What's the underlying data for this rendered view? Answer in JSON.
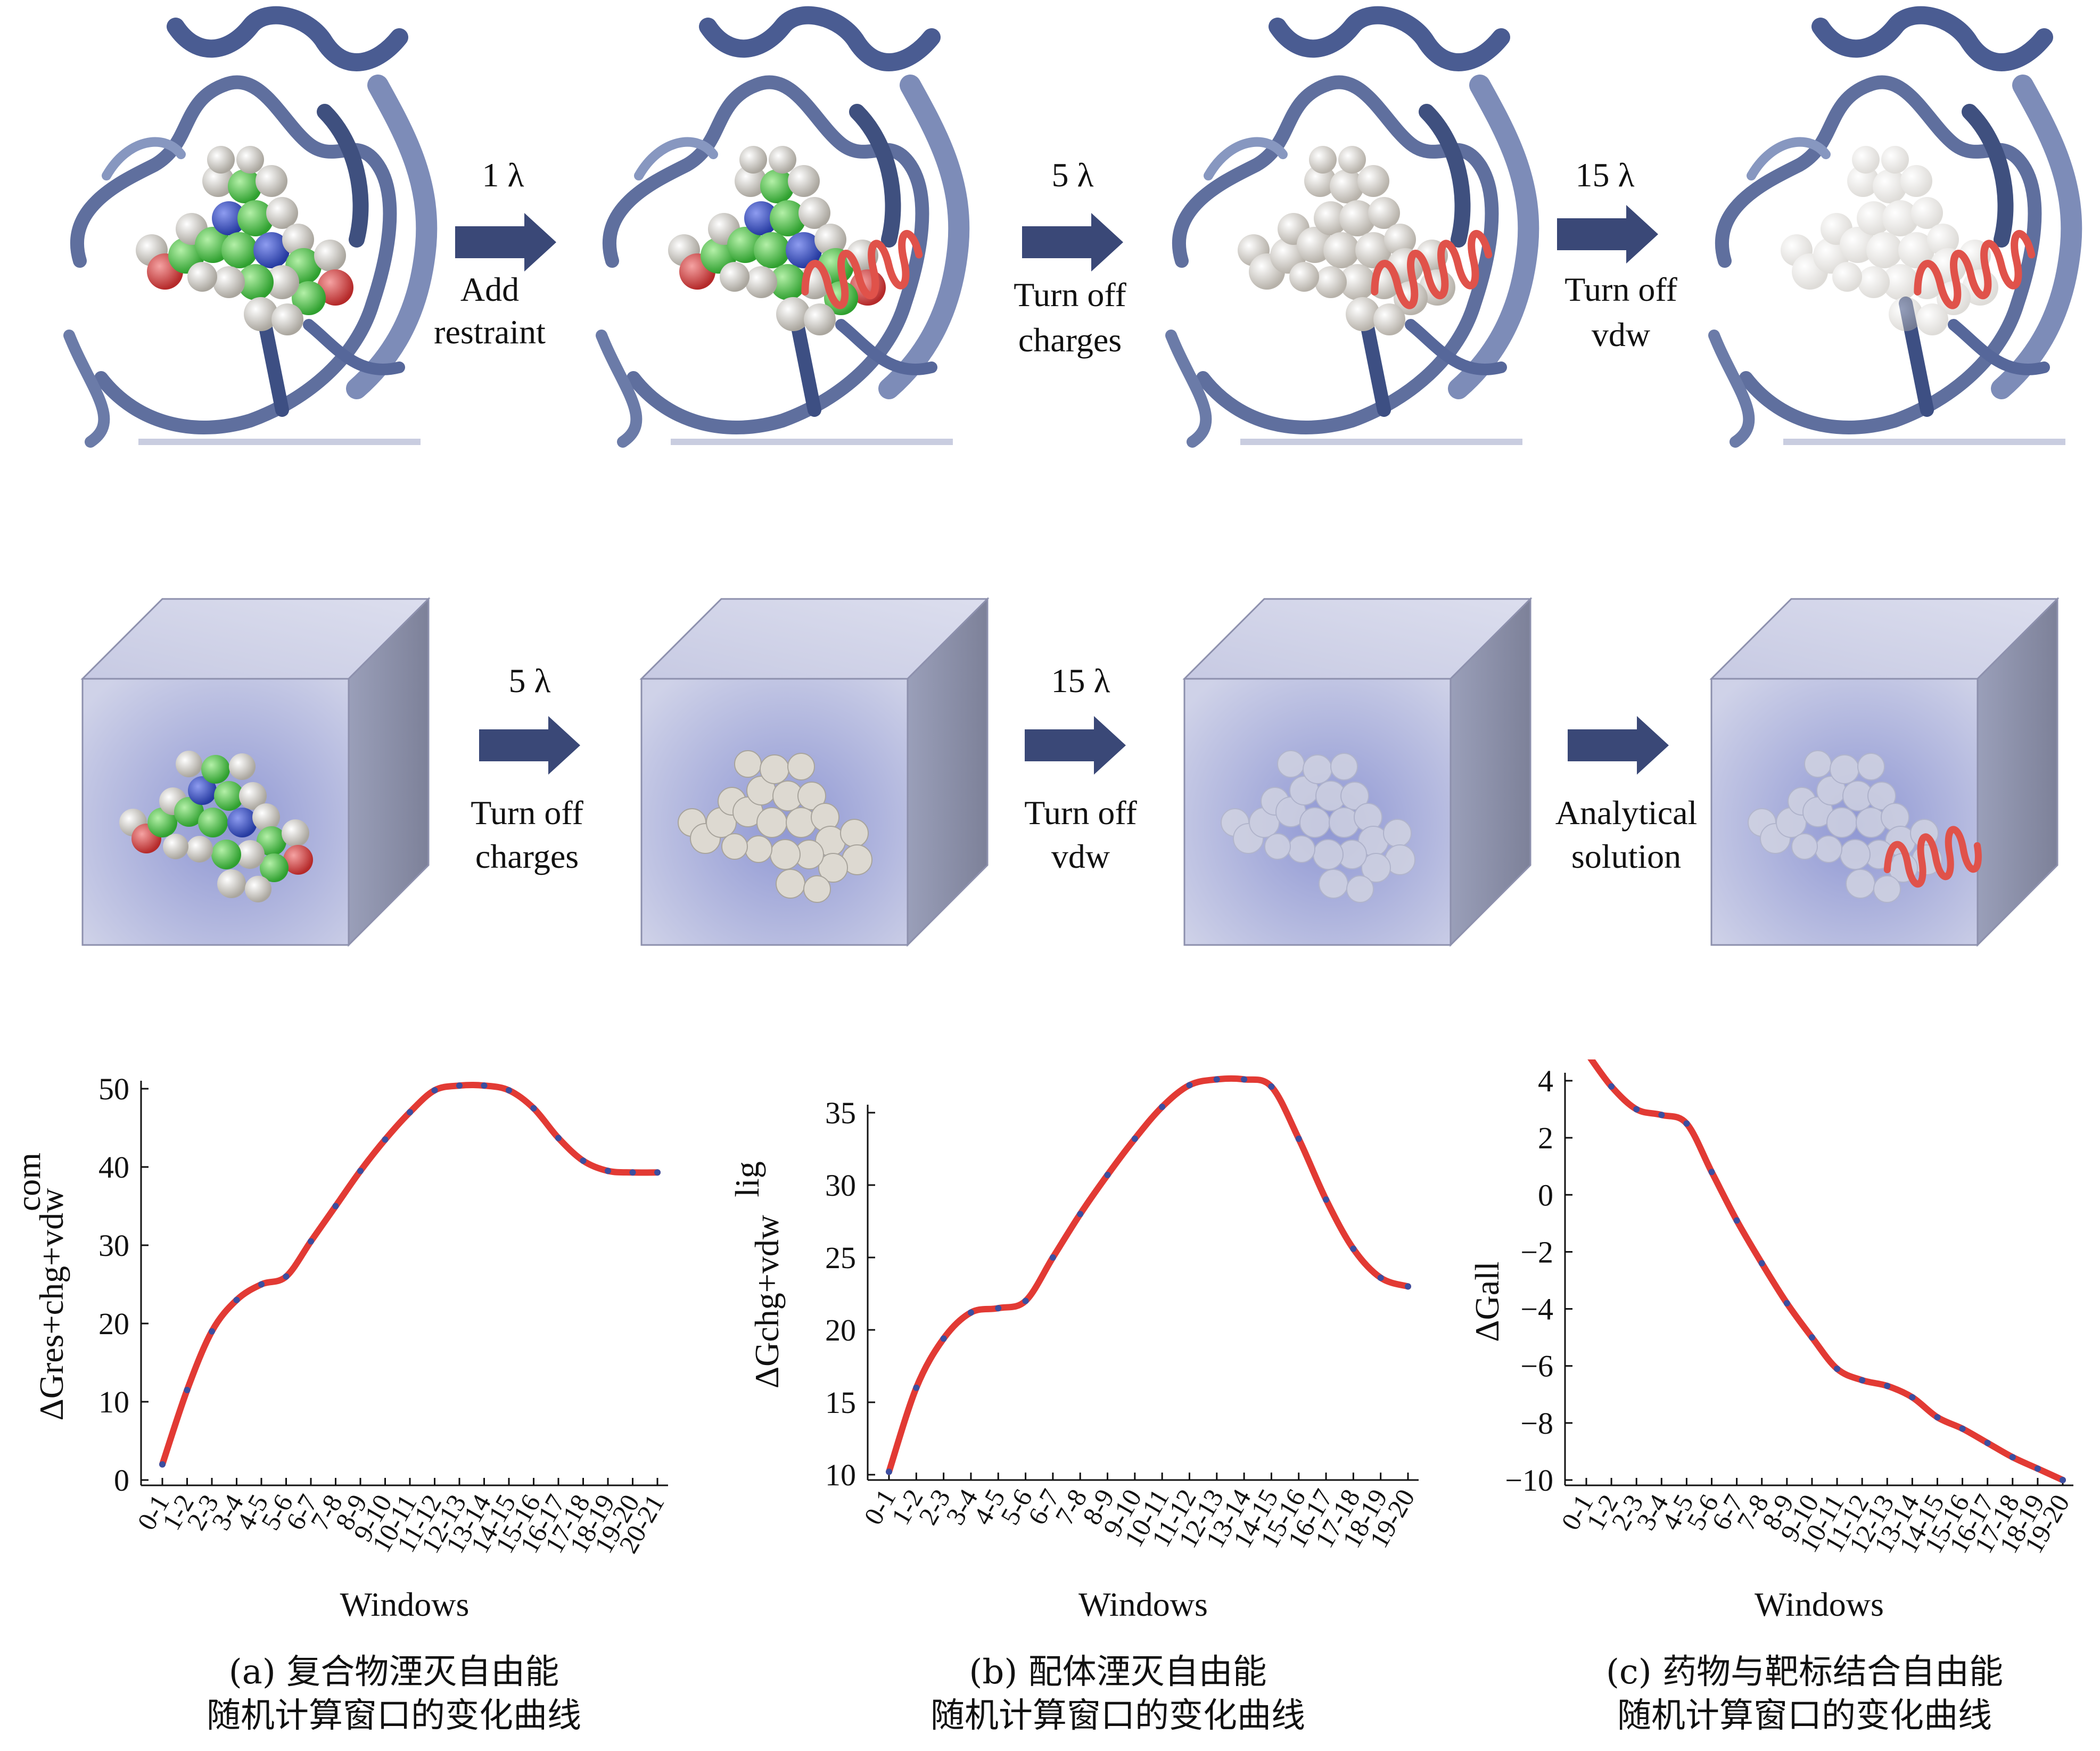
{
  "colors": {
    "arrow": "#3a4877",
    "protein": "#5f6f9e",
    "carbon": "#3fbf3f",
    "nitrogen": "#3a49b5",
    "oxygen": "#cf3f3f",
    "hydrogen": "#dedad2",
    "restraint": "#e0524a",
    "curve": "#e23a34",
    "points": "#3b4ea0",
    "box_face": "#b9bedf"
  },
  "row1": {
    "steps": [
      {
        "lambda": "1 λ",
        "text1": "Add",
        "text2": "restraint"
      },
      {
        "lambda": "5 λ",
        "text1": "Turn off",
        "text2": "charges"
      },
      {
        "lambda": "15 λ",
        "text1": "Turn off",
        "text2": "vdw"
      }
    ]
  },
  "row2": {
    "steps": [
      {
        "lambda": "5 λ",
        "text1": "Turn off",
        "text2": "charges"
      },
      {
        "lambda": "15 λ",
        "text1": "Turn off",
        "text2": "vdw"
      },
      {
        "lambda": "",
        "text1": "Analytical",
        "text2": "solution"
      }
    ]
  },
  "captions": {
    "a1": "(a) 复合物湮灭自由能",
    "a2": "随机计算窗口的变化曲线",
    "b1": "(b) 配体湮灭自由能",
    "b2": "随机计算窗口的变化曲线",
    "c1": "(c) 药物与靶标结合自由能",
    "c2": "随机计算窗口的变化曲线"
  },
  "chart_data": [
    {
      "type": "line",
      "xlabel": "Windows",
      "ylabel_top": "com",
      "ylabel": "ΔGres+chg+vdw",
      "ylim": [
        0,
        50
      ],
      "yticks": [
        0,
        10,
        20,
        30,
        40,
        50
      ],
      "categories": [
        "0-1",
        "1-2",
        "2-3",
        "3-4",
        "4-5",
        "5-6",
        "6-7",
        "7-8",
        "8-9",
        "9-10",
        "10-11",
        "11-12",
        "12-13",
        "13-14",
        "14-15",
        "15-16",
        "16-17",
        "17-18",
        "18-19",
        "19-20",
        "20-21"
      ],
      "values": [
        2,
        11.5,
        19,
        23,
        25,
        26,
        30.5,
        35,
        39.5,
        43.5,
        47,
        49.8,
        50.4,
        50.4,
        49.8,
        47.5,
        43.7,
        40.8,
        39.5,
        39.3,
        39.3
      ]
    },
    {
      "type": "line",
      "xlabel": "Windows",
      "ylabel_top": "lig",
      "ylabel": "ΔGchg+vdw",
      "ylim": [
        10,
        35
      ],
      "yticks": [
        10,
        15,
        20,
        25,
        30,
        35
      ],
      "categories": [
        "0-1",
        "1-2",
        "2-3",
        "3-4",
        "4-5",
        "5-6",
        "6-7",
        "7-8",
        "8-9",
        "9-10",
        "10-11",
        "11-12",
        "12-13",
        "13-14",
        "14-15",
        "15-16",
        "16-17",
        "17-18",
        "18-19",
        "19-20"
      ],
      "values": [
        10.2,
        16,
        19.4,
        21.2,
        21.5,
        22,
        25,
        28,
        30.7,
        33.2,
        35.4,
        36.9,
        37.3,
        37.3,
        36.8,
        33.2,
        29,
        25.6,
        23.6,
        23.0
      ]
    },
    {
      "type": "line",
      "xlabel": "Windows",
      "ylabel": "ΔGall",
      "ylim": [
        -10,
        4
      ],
      "yticks": [
        -10,
        -8,
        -6,
        -4,
        -2,
        0,
        2,
        4
      ],
      "categories": [
        "0-1",
        "1-2",
        "2-3",
        "3-4",
        "4-5",
        "5-6",
        "6-7",
        "7-8",
        "8-9",
        "9-10",
        "10-11",
        "11-12",
        "12-13",
        "13-14",
        "14-15",
        "15-16",
        "16-17",
        "17-18",
        "18-19",
        "19-20"
      ],
      "values": [
        5,
        3.8,
        3.0,
        2.8,
        2.5,
        0.8,
        -0.9,
        -2.4,
        -3.8,
        -5.0,
        -6.1,
        -6.5,
        -6.7,
        -7.1,
        -7.8,
        -8.2,
        -8.7,
        -9.2,
        -9.6,
        -10.0
      ]
    }
  ]
}
